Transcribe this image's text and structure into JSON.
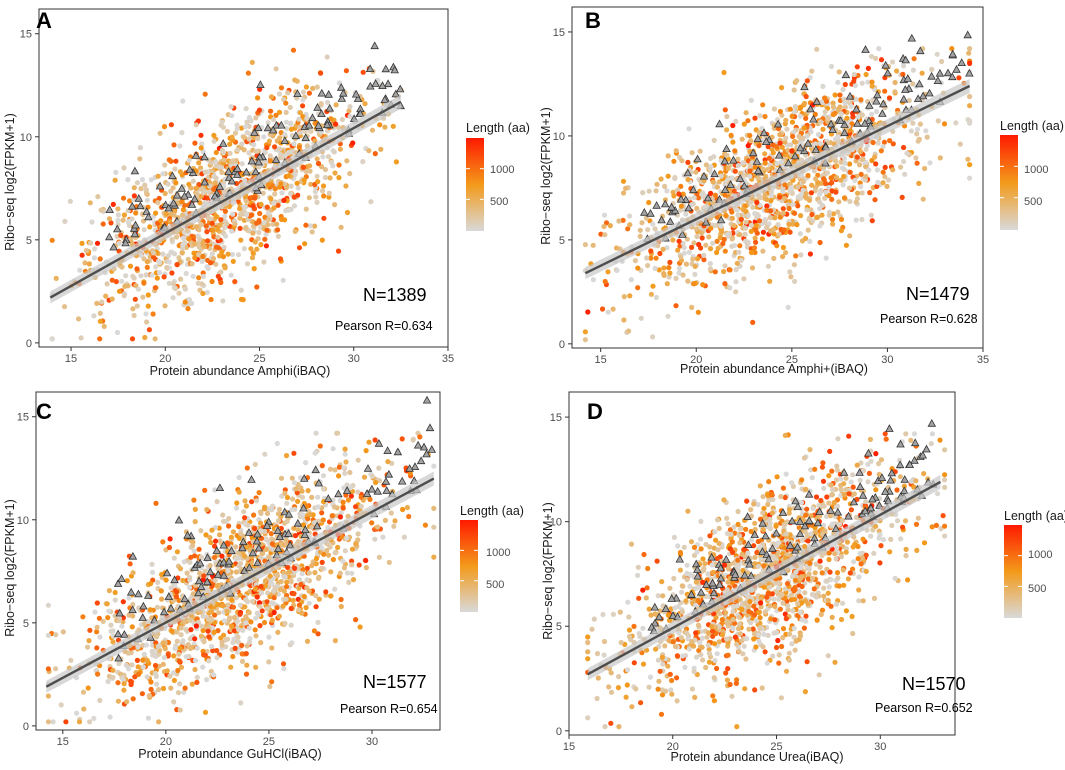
{
  "figure_title": "",
  "colorscale": {
    "low": "#d9d9d9",
    "mid": "#f39a1a",
    "high": "#ff1a00",
    "triangle_fill": "#a3a3a3",
    "triangle_stroke": "#333333",
    "line": "#4d4d4d",
    "band": "#c8c8c8"
  },
  "chart_data": [
    {
      "type": "scatter",
      "panel": "A",
      "xlabel": "Protein abundance Amphi(iBAQ)",
      "ylabel": "Ribo−seq log2(FPKM+1)",
      "xlim": [
        13.3,
        35
      ],
      "ylim": [
        -0.2,
        16.2
      ],
      "xticks": [
        "15",
        "20",
        "25",
        "30",
        "35"
      ],
      "yticks": [
        "0",
        "5",
        "10",
        "15"
      ],
      "n_label": "N=1389",
      "pearson_label": "Pearson R=0.634",
      "fit": {
        "x0": 13.9,
        "y0": 2.2,
        "x1": 32.5,
        "y1": 11.7
      },
      "x_range": [
        14,
        32.5
      ],
      "n_points": 1389,
      "n_triangles": 115,
      "seed": 11,
      "legend": {
        "title": "Length (aa)",
        "ticks": [
          "1000",
          "500"
        ]
      }
    },
    {
      "type": "scatter",
      "panel": "B",
      "xlabel": "Protein abundance Amphi+(iBAQ)",
      "ylabel": "Ribo−seq log2(FPKM+1)",
      "xlim": [
        13.5,
        35
      ],
      "ylim": [
        -0.2,
        16.2
      ],
      "xticks": [
        "15",
        "20",
        "25",
        "30",
        "35"
      ],
      "yticks": [
        "0",
        "5",
        "10",
        "15"
      ],
      "n_label": "N=1479",
      "pearson_label": "Pearson R=0.628",
      "fit": {
        "x0": 14.2,
        "y0": 3.4,
        "x1": 34.3,
        "y1": 12.4
      },
      "x_range": [
        14.2,
        34.3
      ],
      "n_points": 1479,
      "n_triangles": 115,
      "seed": 22,
      "legend": {
        "title": "Length (aa)",
        "ticks": [
          "1000",
          "500"
        ]
      }
    },
    {
      "type": "scatter",
      "panel": "C",
      "xlabel": "Protein abundance GuHCl(iBAQ)",
      "ylabel": "Ribo−seq log2(FPKM+1)",
      "xlim": [
        13.7,
        33.3
      ],
      "ylim": [
        -0.2,
        16.2
      ],
      "xticks": [
        "15",
        "20",
        "25",
        "30"
      ],
      "yticks": [
        "0",
        "5",
        "10",
        "15"
      ],
      "n_label": "N=1577",
      "pearson_label": "Pearson R=0.654",
      "fit": {
        "x0": 14.2,
        "y0": 1.9,
        "x1": 33,
        "y1": 12
      },
      "x_range": [
        14.3,
        33
      ],
      "n_points": 1577,
      "n_triangles": 120,
      "seed": 33,
      "legend": {
        "title": "Length (aa)",
        "ticks": [
          "1000",
          "500"
        ]
      }
    },
    {
      "type": "scatter",
      "panel": "D",
      "xlabel": "Protein abundance Urea(iBAQ)",
      "ylabel": "Ribo−seq log2(FPKM+1)",
      "xlim": [
        15,
        33.6
      ],
      "ylim": [
        -0.2,
        16.2
      ],
      "xticks": [
        "15",
        "20",
        "25",
        "30"
      ],
      "yticks": [
        "0",
        "5",
        "10",
        "15"
      ],
      "n_label": "N=1570",
      "pearson_label": "Pearson R=0.652",
      "fit": {
        "x0": 15.9,
        "y0": 2.7,
        "x1": 32.9,
        "y1": 11.9
      },
      "x_range": [
        15.9,
        33.1
      ],
      "n_points": 1570,
      "n_triangles": 120,
      "seed": 44,
      "legend": {
        "title": "Length (aa)",
        "ticks": [
          "1000",
          "500"
        ]
      }
    }
  ]
}
